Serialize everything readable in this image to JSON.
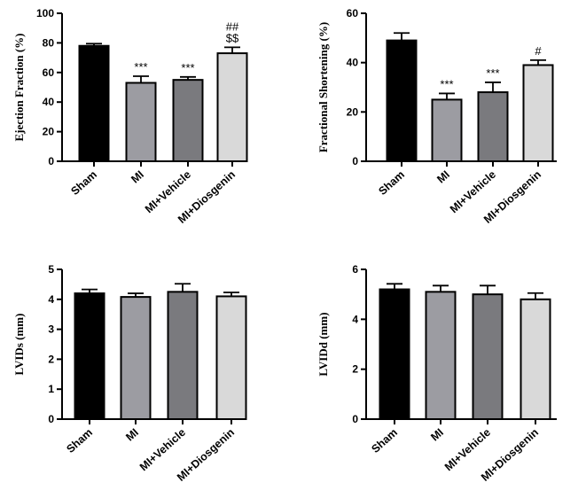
{
  "figure": {
    "chart_data": [
      {
        "type": "bar",
        "categories": [
          "Sham",
          "MI",
          "MI+Vehicle",
          "MI+Diosgenin"
        ],
        "values": [
          78,
          53,
          55,
          73
        ],
        "errors": [
          1.5,
          4.5,
          2,
          4
        ],
        "annotations": [
          [],
          [
            "***"
          ],
          [
            "***"
          ],
          [
            "$$",
            "##"
          ]
        ],
        "ylabel": "Ejection Fraction (%)",
        "ylim": [
          0,
          100
        ],
        "yticks": [
          0,
          20,
          40,
          60,
          80,
          100
        ],
        "colors": [
          "#000000",
          "#9c9ca2",
          "#7a7a7e",
          "#d9d9d9"
        ]
      },
      {
        "type": "bar",
        "categories": [
          "Sham",
          "MI",
          "MI+Vehicle",
          "MI+Diosgenin"
        ],
        "values": [
          49,
          25,
          28,
          39
        ],
        "errors": [
          3,
          2.5,
          4,
          2
        ],
        "annotations": [
          [],
          [
            "***"
          ],
          [
            "***"
          ],
          [
            "#"
          ]
        ],
        "ylabel": "Fractional Shortening (%)",
        "ylim": [
          0,
          60
        ],
        "yticks": [
          0,
          20,
          40,
          60
        ],
        "colors": [
          "#000000",
          "#9c9ca2",
          "#7a7a7e",
          "#d9d9d9"
        ]
      },
      {
        "type": "bar",
        "categories": [
          "Sham",
          "MI",
          "MI+Vehicle",
          "MI+Diosgenin"
        ],
        "values": [
          4.2,
          4.08,
          4.25,
          4.1
        ],
        "errors": [
          0.13,
          0.12,
          0.27,
          0.13
        ],
        "annotations": [
          [],
          [],
          [],
          []
        ],
        "ylabel": "LVIDs (mm)",
        "ylim": [
          0,
          5
        ],
        "yticks": [
          0,
          1,
          2,
          3,
          4,
          5
        ],
        "colors": [
          "#000000",
          "#9c9ca2",
          "#7a7a7e",
          "#d9d9d9"
        ]
      },
      {
        "type": "bar",
        "categories": [
          "Sham",
          "MI",
          "MI+Vehicle",
          "MI+Diosgenin"
        ],
        "values": [
          5.2,
          5.1,
          5.0,
          4.8
        ],
        "errors": [
          0.22,
          0.25,
          0.35,
          0.25
        ],
        "annotations": [
          [],
          [],
          [],
          []
        ],
        "ylabel": "LVIDd (mm)",
        "ylim": [
          0,
          6
        ],
        "yticks": [
          0,
          2,
          4,
          6
        ],
        "colors": [
          "#000000",
          "#9c9ca2",
          "#7a7a7e",
          "#d9d9d9"
        ]
      }
    ]
  }
}
